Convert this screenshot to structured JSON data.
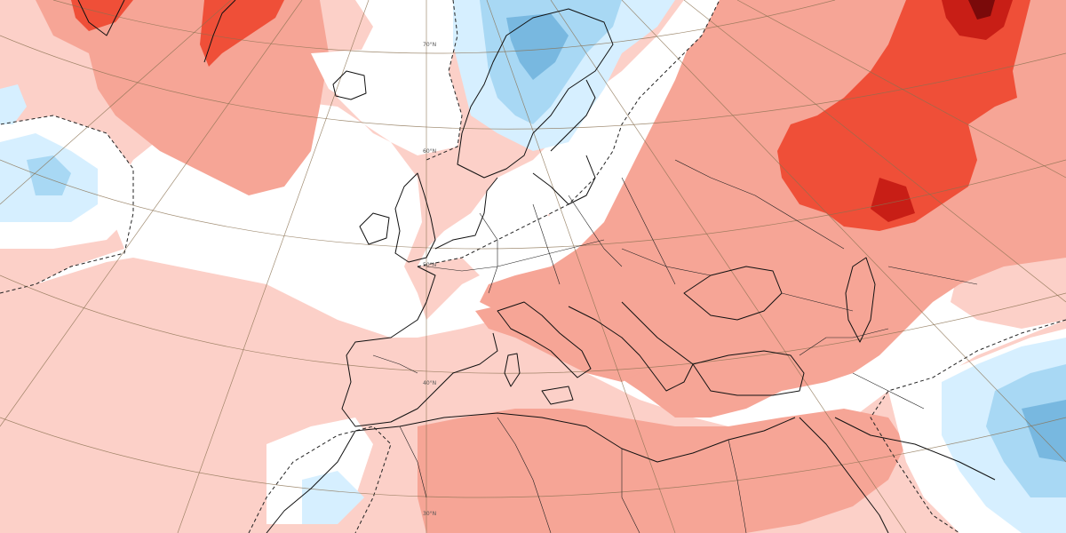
{
  "map": {
    "latitude_labels": [
      "70°N",
      "60°N",
      "50°N",
      "40°N",
      "30°N"
    ],
    "colors": {
      "background": "#ffffff",
      "warm_1": "#fcd0c8",
      "warm_2": "#f6a596",
      "warm_3": "#ef4f38",
      "warm_4": "#c81e16",
      "warm_5": "#7a0a0a",
      "cool_1": "#d6efff",
      "cool_2": "#a8d8f4",
      "cool_3": "#78b8e0",
      "coastline": "#111111",
      "graticule": "#8a7050"
    },
    "icons": [
      "coastline-lines",
      "graticule-lines",
      "dashed-zero-contour"
    ]
  }
}
